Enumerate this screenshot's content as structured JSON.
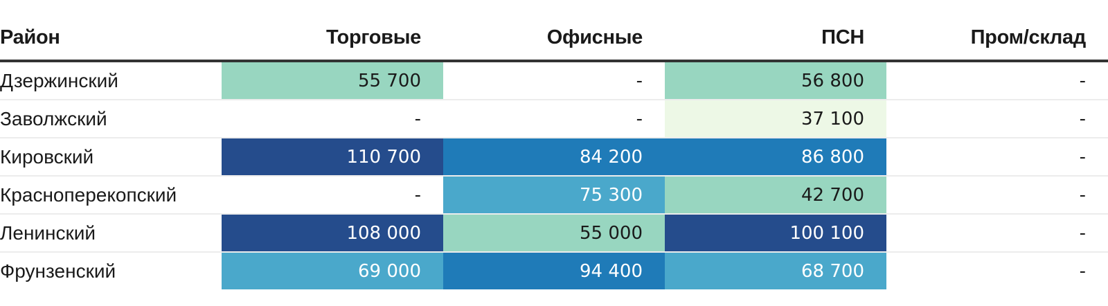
{
  "chart_data": {
    "type": "heatmap",
    "columns": [
      "Район",
      "Торговые",
      "Офисные",
      "ПСН",
      "Пром/склад"
    ],
    "rows": [
      {
        "district": "Дзержинский",
        "cells": [
          "55 700",
          "-",
          "56 800",
          "-"
        ],
        "values": [
          55700,
          null,
          56800,
          null
        ]
      },
      {
        "district": "Заволжский",
        "cells": [
          "-",
          "-",
          "37 100",
          "-"
        ],
        "values": [
          null,
          null,
          37100,
          null
        ]
      },
      {
        "district": "Кировский",
        "cells": [
          "110 700",
          "84 200",
          "86 800",
          "-"
        ],
        "values": [
          110700,
          84200,
          86800,
          null
        ]
      },
      {
        "district": "Красноперекопский",
        "cells": [
          "-",
          "75 300",
          "42 700",
          "-"
        ],
        "values": [
          null,
          75300,
          42700,
          null
        ]
      },
      {
        "district": "Ленинский",
        "cells": [
          "108 000",
          "55 000",
          "100 100",
          "-"
        ],
        "values": [
          108000,
          55000,
          100100,
          null
        ]
      },
      {
        "district": "Фрунзенский",
        "cells": [
          "69 000",
          "94 400",
          "68 700",
          "-"
        ],
        "values": [
          69000,
          94400,
          68700,
          null
        ]
      }
    ],
    "color_scale": {
      "stops": [
        {
          "max": 40000,
          "bg": "#edf8e6",
          "fg": "#1a1a1a"
        },
        {
          "max": 60000,
          "bg": "#98d6c0",
          "fg": "#1a1a1a"
        },
        {
          "max": 80000,
          "bg": "#4aa8cb",
          "fg": "#ffffff"
        },
        {
          "max": 100000,
          "bg": "#1f7bb8",
          "fg": "#ffffff"
        },
        {
          "max": 1000000,
          "bg": "#254c8c",
          "fg": "#ffffff"
        }
      ],
      "empty_bg": "#ffffff",
      "empty_fg": "#1a1a1a"
    }
  }
}
